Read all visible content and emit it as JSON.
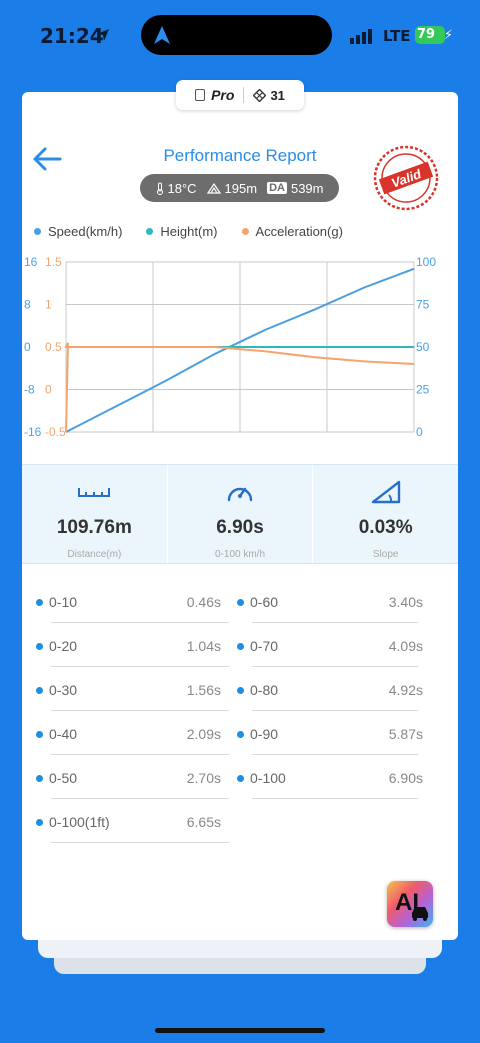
{
  "status_bar": {
    "time": "21:24",
    "network": "LTE",
    "battery": "79"
  },
  "tab": {
    "pro_label": "Pro",
    "count": "31"
  },
  "header": {
    "title": "Performance Report",
    "stamp_text": "Valid"
  },
  "conditions": {
    "temperature": "18°C",
    "height": "195m",
    "da_label": "DA",
    "density_altitude": "539m"
  },
  "legend": [
    {
      "label": "Speed(km/h)",
      "color": "#4a9fe3"
    },
    {
      "label": "Height(m)",
      "color": "#2bbbbf"
    },
    {
      "label": "Acceleration(g)",
      "color": "#f4a46c"
    }
  ],
  "chart_data": {
    "type": "line",
    "x": [
      0,
      1,
      2,
      3,
      4,
      5,
      6,
      7
    ],
    "left_height_axis_ticks": [
      "16",
      "8",
      "0",
      "-8",
      "-16"
    ],
    "left_height_axis_range": [
      -16,
      16
    ],
    "left_accel_axis_ticks": [
      "1.5",
      "1",
      "0.5",
      "0",
      "-0.5"
    ],
    "left_accel_axis_range": [
      -0.5,
      1.5
    ],
    "right_speed_axis_ticks": [
      "100",
      "75",
      "50",
      "25",
      "0"
    ],
    "right_speed_axis_range": [
      0,
      100
    ],
    "grid": true,
    "series": [
      {
        "name": "Speed(km/h)",
        "axis": "speed",
        "color": "#4a9fe3",
        "values": [
          0,
          15,
          30,
          46,
          60,
          72,
          85,
          96
        ]
      },
      {
        "name": "Height(m)",
        "axis": "height",
        "color": "#2bbbbf",
        "values": [
          0,
          0,
          0,
          0,
          0,
          0,
          0,
          0
        ]
      },
      {
        "name": "Acceleration(g)",
        "axis": "accel",
        "color": "#f4a46c",
        "values": [
          0.5,
          0.5,
          0.5,
          0.5,
          0.45,
          0.38,
          0.33,
          0.3
        ]
      }
    ]
  },
  "stats": [
    {
      "value": "109.76m",
      "label": "Distance(m)",
      "icon": "ruler-icon"
    },
    {
      "value": "6.90s",
      "label": "0-100 km/h",
      "icon": "speedometer-icon"
    },
    {
      "value": "0.03%",
      "label": "Slope",
      "icon": "slope-icon"
    }
  ],
  "times": [
    {
      "range": "0-10",
      "time": "0.46s"
    },
    {
      "range": "0-60",
      "time": "3.40s"
    },
    {
      "range": "0-20",
      "time": "1.04s"
    },
    {
      "range": "0-70",
      "time": "4.09s"
    },
    {
      "range": "0-30",
      "time": "1.56s"
    },
    {
      "range": "0-80",
      "time": "4.92s"
    },
    {
      "range": "0-40",
      "time": "2.09s"
    },
    {
      "range": "0-90",
      "time": "5.87s"
    },
    {
      "range": "0-50",
      "time": "2.70s"
    },
    {
      "range": "0-100",
      "time": "6.90s"
    },
    {
      "range": "0-100(1ft)",
      "time": "6.65s"
    }
  ],
  "ai_button": {
    "label": "AI"
  }
}
